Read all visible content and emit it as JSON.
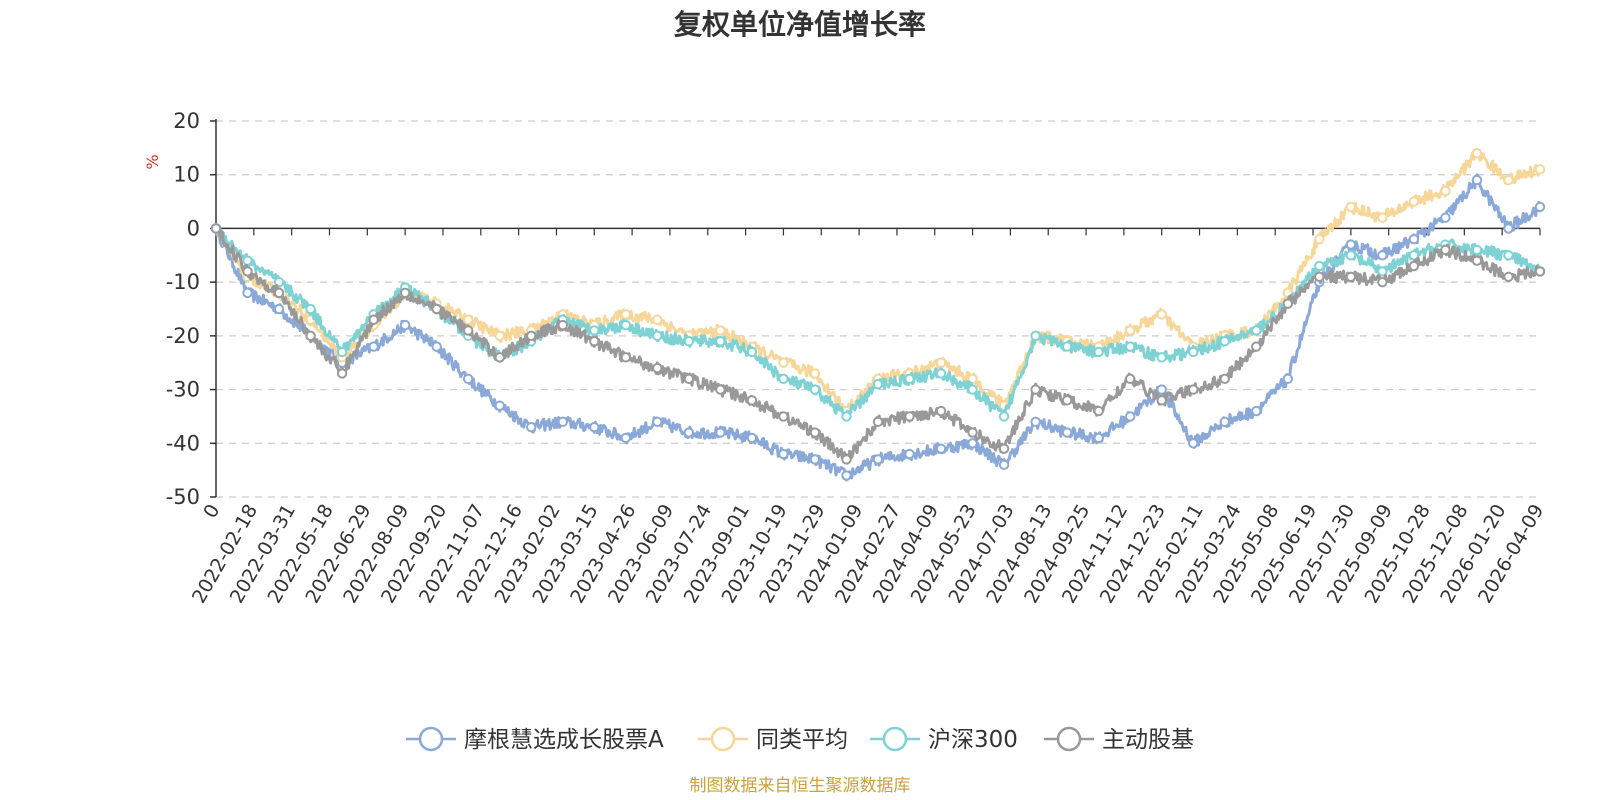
{
  "chart_data": {
    "type": "line",
    "title": "复权单位净值增长率",
    "ylabel": "%",
    "ylim": [
      -50,
      20
    ],
    "yticks": [
      20,
      10,
      0,
      -10,
      -20,
      -30,
      -40,
      -50
    ],
    "grid": true,
    "legend_position": "bottom",
    "x_tick_labels": [
      "0",
      "2022-02-18",
      "2022-03-31",
      "2022-05-18",
      "2022-06-29",
      "2022-08-09",
      "2022-09-20",
      "2022-11-07",
      "2022-12-16",
      "2023-02-02",
      "2023-03-15",
      "2023-04-26",
      "2023-06-09",
      "2023-07-24",
      "2023-09-01",
      "2023-10-19",
      "2023-11-29",
      "2024-01-09",
      "2024-02-27",
      "2024-04-09",
      "2024-05-23",
      "2024-07-03",
      "2024-08-13",
      "2024-09-25",
      "2024-11-12",
      "2024-12-23",
      "2025-02-11",
      "2025-03-24",
      "2025-05-08",
      "2025-06-19",
      "2025-07-30",
      "2025-09-09",
      "2025-10-28",
      "2025-12-08",
      "2026-01-20",
      "2026-04-09"
    ],
    "series": [
      {
        "name": "摩根慧选成长股票A",
        "color": "#8aa8d8",
        "values": [
          0,
          -12,
          -15,
          -20,
          -25,
          -22,
          -18,
          -22,
          -28,
          -33,
          -37,
          -36,
          -37,
          -39,
          -36,
          -38,
          -38,
          -39,
          -42,
          -43,
          -46,
          -43,
          -42,
          -41,
          -40,
          -44,
          -36,
          -38,
          -39,
          -35,
          -30,
          -40,
          -36,
          -34,
          -28,
          -10,
          -3,
          -5,
          -2,
          2,
          9,
          0,
          4
        ]
      },
      {
        "name": "同类平均",
        "color": "#f7d69a",
        "values": [
          0,
          -9,
          -12,
          -17,
          -24,
          -18,
          -12,
          -14,
          -17,
          -20,
          -19,
          -16,
          -18,
          -16,
          -17,
          -20,
          -19,
          -22,
          -25,
          -27,
          -34,
          -28,
          -27,
          -25,
          -28,
          -33,
          -20,
          -21,
          -22,
          -19,
          -16,
          -22,
          -20,
          -19,
          -12,
          -2,
          4,
          2,
          5,
          7,
          14,
          9,
          11
        ]
      },
      {
        "name": "沪深300",
        "color": "#7fd2d4",
        "values": [
          0,
          -6,
          -10,
          -15,
          -23,
          -16,
          -11,
          -15,
          -20,
          -24,
          -21,
          -17,
          -19,
          -18,
          -20,
          -21,
          -21,
          -23,
          -28,
          -30,
          -35,
          -29,
          -28,
          -27,
          -30,
          -35,
          -20,
          -22,
          -23,
          -22,
          -24,
          -23,
          -21,
          -19,
          -14,
          -7,
          -5,
          -8,
          -5,
          -3,
          -4,
          -5,
          -8
        ]
      },
      {
        "name": "主动股基",
        "color": "#999999",
        "values": [
          0,
          -8,
          -12,
          -20,
          -27,
          -17,
          -12,
          -15,
          -19,
          -24,
          -20,
          -18,
          -21,
          -24,
          -26,
          -28,
          -30,
          -32,
          -35,
          -38,
          -43,
          -36,
          -35,
          -34,
          -38,
          -41,
          -30,
          -32,
          -34,
          -28,
          -32,
          -30,
          -28,
          -22,
          -14,
          -9,
          -9,
          -10,
          -7,
          -4,
          -6,
          -9,
          -8
        ]
      }
    ]
  },
  "source_text": "制图数据来自恒生聚源数据库"
}
